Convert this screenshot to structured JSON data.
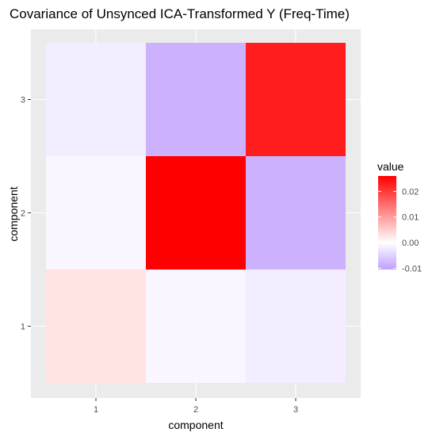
{
  "chart_data": {
    "type": "heatmap",
    "title": "Covariance of Unsynced ICA-Transformed Y (Freq-Time)",
    "xlabel": "component",
    "ylabel": "component",
    "x_categories": [
      "1",
      "2",
      "3"
    ],
    "y_categories": [
      "1",
      "2",
      "3"
    ],
    "cells": [
      {
        "x": "1",
        "y": "1",
        "value": 0.003
      },
      {
        "x": "2",
        "y": "1",
        "value": -0.001
      },
      {
        "x": "3",
        "y": "1",
        "value": -0.002
      },
      {
        "x": "1",
        "y": "2",
        "value": -0.001
      },
      {
        "x": "2",
        "y": "2",
        "value": 0.026
      },
      {
        "x": "3",
        "y": "2",
        "value": -0.0085
      },
      {
        "x": "1",
        "y": "3",
        "value": -0.002
      },
      {
        "x": "2",
        "y": "3",
        "value": -0.0085
      },
      {
        "x": "3",
        "y": "3",
        "value": 0.023
      }
    ],
    "legend": {
      "title": "value",
      "position": "right",
      "min": -0.0105,
      "max": 0.026,
      "ticks": [
        {
          "value": -0.01,
          "label": "-0.01"
        },
        {
          "value": 0.0,
          "label": "0.00"
        },
        {
          "value": 0.01,
          "label": "0.01"
        },
        {
          "value": 0.02,
          "label": "0.02"
        }
      ]
    },
    "colors": {
      "low": "#c09fff",
      "mid": "#ffffff",
      "high": "#ff0000",
      "panel_background": "#ebebeb",
      "grid": "#ffffff"
    },
    "grid": true
  }
}
